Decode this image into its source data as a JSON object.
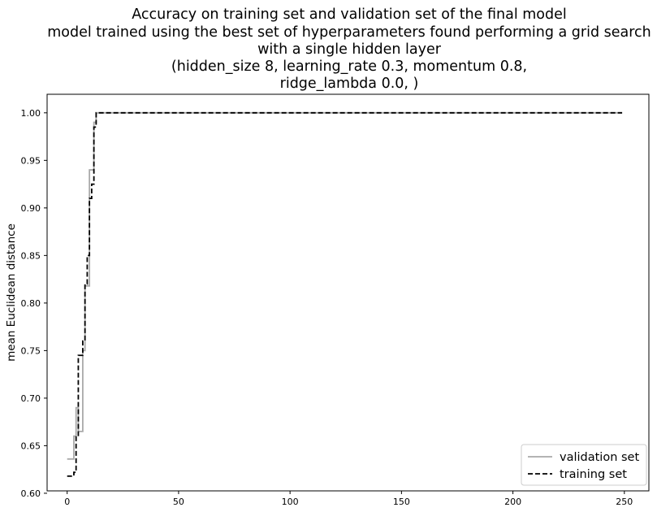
{
  "chart_data": {
    "type": "line",
    "title_lines": [
      "Accuracy on training set and validation set of the final model",
      "model trained using the best set of hyperparameters found performing a grid search",
      "with a single hidden layer",
      "(hidden_size 8, learning_rate 0.3, momentum 0.8,",
      "ridge_lambda 0.0, )"
    ],
    "xlabel": "",
    "ylabel": "mean Euclidean distance",
    "xlim": [
      -9,
      261
    ],
    "ylim": [
      0.6025,
      1.0195
    ],
    "xticks": [
      0,
      50,
      100,
      150,
      200,
      250
    ],
    "xtick_labels": [
      "0",
      "50",
      "100",
      "150",
      "200",
      "250"
    ],
    "yticks": [
      0.6,
      0.65,
      0.7,
      0.75,
      0.8,
      0.85,
      0.9,
      0.95,
      1.0
    ],
    "ytick_labels": [
      "0.60",
      "0.65",
      "0.70",
      "0.75",
      "0.80",
      "0.85",
      "0.90",
      "0.95",
      "1.00"
    ],
    "grid": false,
    "legend_position": "lower-right",
    "series": [
      {
        "name": "validation set",
        "color": "#aaaaaa",
        "style": "solid",
        "x": [
          0,
          1,
          2,
          3,
          4,
          5,
          6,
          7,
          8,
          9,
          10,
          11,
          12,
          13,
          14,
          20,
          50,
          100,
          150,
          200,
          249
        ],
        "y": [
          0.636,
          0.636,
          0.636,
          0.66,
          0.69,
          0.665,
          0.665,
          0.75,
          0.818,
          0.818,
          0.94,
          0.94,
          0.99,
          1.0,
          1.0,
          1.0,
          1.0,
          1.0,
          1.0,
          1.0,
          1.0
        ]
      },
      {
        "name": "training set",
        "color": "#000000",
        "style": "dashed",
        "x": [
          0,
          1,
          2,
          3,
          4,
          5,
          6,
          7,
          8,
          9,
          10,
          11,
          12,
          13,
          14,
          20,
          50,
          100,
          150,
          200,
          249
        ],
        "y": [
          0.618,
          0.618,
          0.618,
          0.622,
          0.66,
          0.745,
          0.745,
          0.76,
          0.82,
          0.85,
          0.91,
          0.925,
          0.985,
          1.0,
          1.0,
          1.0,
          1.0,
          1.0,
          1.0,
          1.0,
          1.0
        ]
      }
    ]
  }
}
